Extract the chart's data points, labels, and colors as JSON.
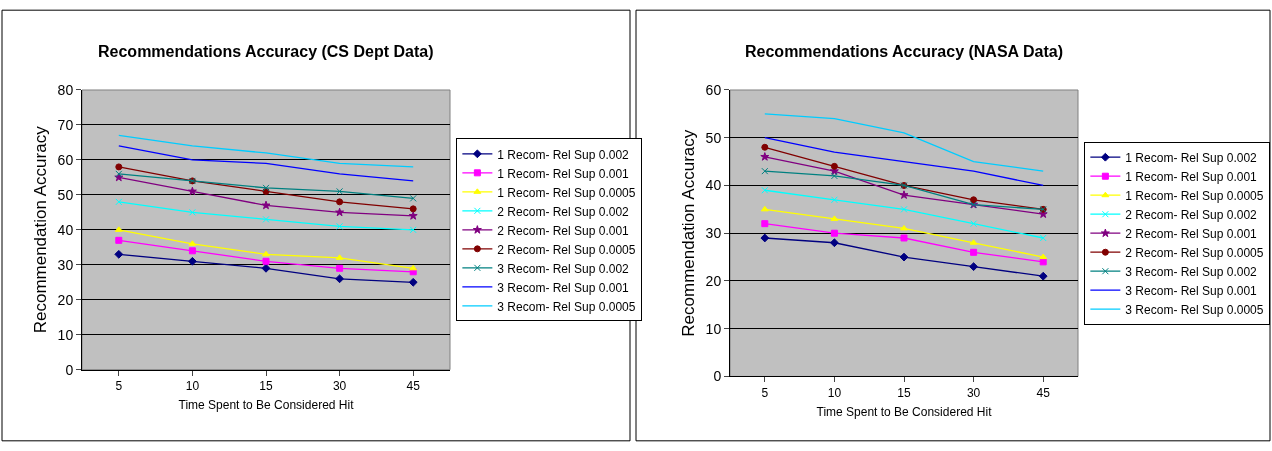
{
  "chart_data": [
    {
      "type": "line",
      "title": "Recommendations Accuracy (CS Dept Data)",
      "xlabel": "Time Spent to Be Considered Hit",
      "ylabel": "Recommendation Accuracy",
      "categories": [
        "5",
        "10",
        "15",
        "30",
        "45"
      ],
      "ylim": [
        0,
        80
      ],
      "yticks": [
        0,
        10,
        20,
        30,
        40,
        50,
        60,
        70,
        80
      ],
      "grid": "y",
      "legend": "right",
      "series": [
        {
          "name": "1 Recom- Rel Sup 0.002",
          "color": "#000080",
          "marker": "diamond",
          "values": [
            33,
            31,
            29,
            26,
            25
          ]
        },
        {
          "name": "1 Recom- Rel Sup 0.001",
          "color": "#ff00ff",
          "marker": "square",
          "values": [
            37,
            34,
            31,
            29,
            28
          ]
        },
        {
          "name": "1 Recom- Rel Sup 0.0005",
          "color": "#ffff00",
          "marker": "triangle",
          "values": [
            40,
            36,
            33,
            32,
            29
          ]
        },
        {
          "name": "2 Recom- Rel Sup 0.002",
          "color": "#00ffff",
          "marker": "cross",
          "values": [
            48,
            45,
            43,
            41,
            40
          ]
        },
        {
          "name": "2 Recom- Rel Sup 0.001",
          "color": "#800080",
          "marker": "star",
          "values": [
            55,
            51,
            47,
            45,
            44
          ]
        },
        {
          "name": "2 Recom- Rel Sup 0.0005",
          "color": "#800000",
          "marker": "circle",
          "values": [
            58,
            54,
            51,
            48,
            46
          ]
        },
        {
          "name": "3 Recom- Rel Sup 0.002",
          "color": "#008080",
          "marker": "cross",
          "values": [
            56,
            54,
            52,
            51,
            49
          ]
        },
        {
          "name": "3 Recom- Rel Sup 0.001",
          "color": "#0000ff",
          "marker": "none",
          "values": [
            64,
            60,
            59,
            56,
            54
          ]
        },
        {
          "name": "3 Recom- Rel Sup 0.0005",
          "color": "#00ccff",
          "marker": "none",
          "values": [
            67,
            64,
            62,
            59,
            58
          ]
        }
      ]
    },
    {
      "type": "line",
      "title": "Recommendations Accuracy (NASA Data)",
      "xlabel": "Time Spent to Be Considered Hit",
      "ylabel": "Recommendation Accuracy",
      "categories": [
        "5",
        "10",
        "15",
        "30",
        "45"
      ],
      "ylim": [
        0,
        60
      ],
      "yticks": [
        0,
        10,
        20,
        30,
        40,
        50,
        60
      ],
      "grid": "y",
      "legend": "right",
      "series": [
        {
          "name": "1 Recom- Rel Sup 0.002",
          "color": "#000080",
          "marker": "diamond",
          "values": [
            29,
            28,
            25,
            23,
            21
          ]
        },
        {
          "name": "1 Recom- Rel Sup 0.001",
          "color": "#ff00ff",
          "marker": "square",
          "values": [
            32,
            30,
            29,
            26,
            24
          ]
        },
        {
          "name": "1 Recom- Rel Sup 0.0005",
          "color": "#ffff00",
          "marker": "triangle",
          "values": [
            35,
            33,
            31,
            28,
            25
          ]
        },
        {
          "name": "2 Recom- Rel Sup 0.002",
          "color": "#00ffff",
          "marker": "cross",
          "values": [
            39,
            37,
            35,
            32,
            29
          ]
        },
        {
          "name": "2 Recom- Rel Sup 0.001",
          "color": "#800080",
          "marker": "star",
          "values": [
            46,
            43,
            38,
            36,
            34
          ]
        },
        {
          "name": "2 Recom- Rel Sup 0.0005",
          "color": "#800000",
          "marker": "circle",
          "values": [
            48,
            44,
            40,
            37,
            35
          ]
        },
        {
          "name": "3 Recom- Rel Sup 0.002",
          "color": "#008080",
          "marker": "cross",
          "values": [
            43,
            42,
            40,
            36,
            35
          ]
        },
        {
          "name": "3 Recom- Rel Sup 0.001",
          "color": "#0000ff",
          "marker": "none",
          "values": [
            50,
            47,
            45,
            43,
            40
          ]
        },
        {
          "name": "3 Recom- Rel Sup 0.0005",
          "color": "#00ccff",
          "marker": "none",
          "values": [
            55,
            54,
            51,
            45,
            43
          ]
        }
      ]
    }
  ]
}
